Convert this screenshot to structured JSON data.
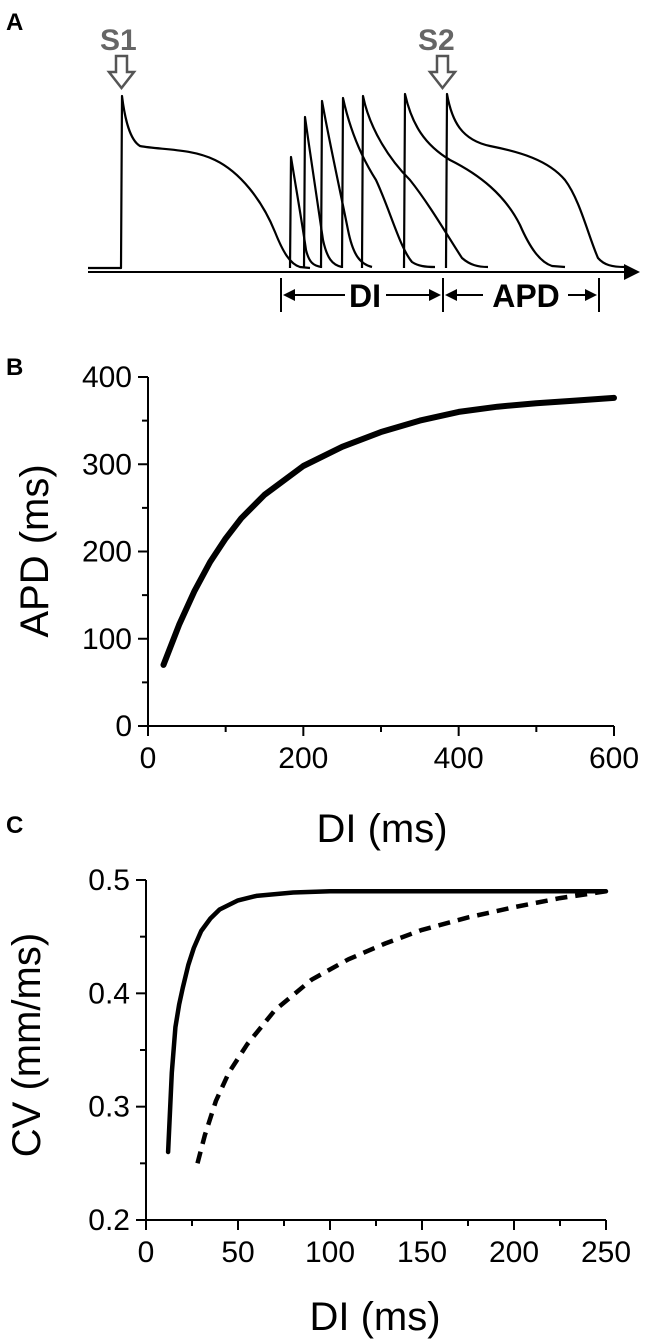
{
  "panel_a": {
    "letter": "A",
    "stimulus_labels": [
      "S1",
      "S2"
    ],
    "bracket_labels": {
      "di": "DI",
      "apd": "APD"
    },
    "stroke_color": "#000000",
    "arrow_color": "#555555"
  },
  "chart_data": [
    {
      "panel": "B",
      "type": "line",
      "title": "",
      "xlabel": "DI (ms)",
      "ylabel": "APD (ms)",
      "xlim": [
        0,
        600
      ],
      "ylim": [
        0,
        400
      ],
      "xticks": [
        0,
        200,
        400,
        600
      ],
      "yticks": [
        0,
        100,
        200,
        300,
        400
      ],
      "grid": false,
      "series": [
        {
          "style": "solid",
          "color": "#000000",
          "x": [
            20,
            40,
            60,
            80,
            100,
            120,
            150,
            200,
            250,
            300,
            350,
            400,
            450,
            500,
            550,
            600
          ],
          "y": [
            70,
            116,
            155,
            188,
            215,
            238,
            265,
            298,
            320,
            337,
            350,
            360,
            366,
            370,
            373,
            376
          ]
        }
      ]
    },
    {
      "panel": "C",
      "type": "line",
      "title": "",
      "xlabel": "DI (ms)",
      "ylabel": "CV (mm/ms)",
      "xlim": [
        0,
        250
      ],
      "ylim": [
        0.2,
        0.5
      ],
      "xticks": [
        0,
        50,
        100,
        150,
        200,
        250
      ],
      "yticks": [
        0.2,
        0.3,
        0.4,
        0.5
      ],
      "grid": false,
      "series": [
        {
          "style": "solid",
          "color": "#000000",
          "x": [
            12,
            14,
            16,
            18,
            20,
            23,
            26,
            30,
            35,
            40,
            50,
            60,
            80,
            100,
            150,
            200,
            250
          ],
          "y": [
            0.26,
            0.33,
            0.37,
            0.39,
            0.405,
            0.425,
            0.44,
            0.455,
            0.466,
            0.474,
            0.482,
            0.486,
            0.489,
            0.49,
            0.49,
            0.49,
            0.49
          ]
        },
        {
          "style": "dashed",
          "color": "#000000",
          "x": [
            28,
            32,
            38,
            45,
            55,
            70,
            90,
            110,
            130,
            150,
            175,
            200,
            225,
            250
          ],
          "y": [
            0.25,
            0.275,
            0.305,
            0.33,
            0.355,
            0.385,
            0.412,
            0.43,
            0.444,
            0.456,
            0.467,
            0.476,
            0.484,
            0.49
          ]
        }
      ]
    }
  ],
  "panel_letters": {
    "b": "B",
    "c": "C"
  }
}
